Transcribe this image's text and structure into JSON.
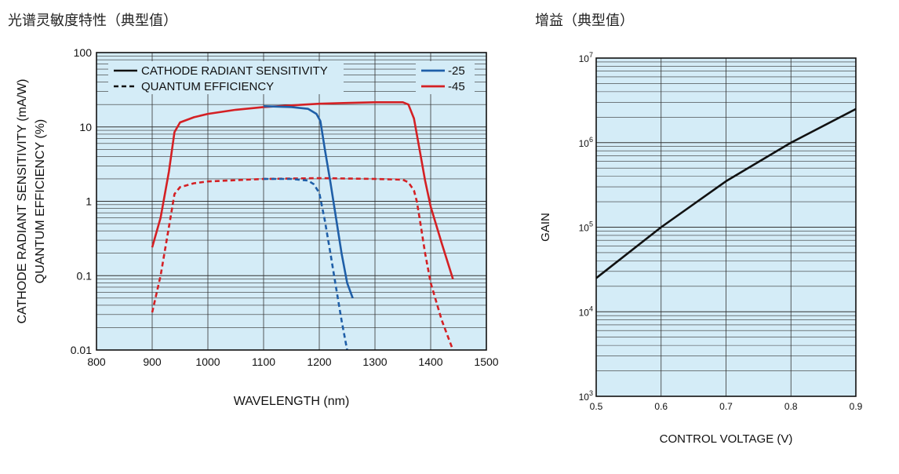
{
  "page": {
    "left_title": "光谱灵敏度特性（典型值）",
    "right_title": "增益（典型值）"
  },
  "chart_data": [
    {
      "type": "line",
      "xlabel": "WAVELENGTH (nm)",
      "ylabel": "CATHODE RADIANT SENSITIVITY (mA/W)",
      "ylabel2": "QUANTUM EFFICIENCY (%)",
      "xlim": [
        800,
        1500
      ],
      "ylim": [
        0.01,
        100
      ],
      "yscale": "log",
      "x_ticks": [
        "800",
        "900",
        "1000",
        "1100",
        "1200",
        "1300",
        "1400",
        "1500"
      ],
      "y_ticks": [
        "0.01",
        "0.1",
        "1",
        "10",
        "100"
      ],
      "grid": true,
      "legend_style": {
        "position": "top-left",
        "entries": [
          {
            "label": "CATHODE RADIANT SENSITIVITY",
            "style": "solid"
          },
          {
            "label": "QUANTUM EFFICIENCY",
            "style": "dashed"
          }
        ]
      },
      "legend_color": {
        "position": "top-right",
        "entries": [
          {
            "label": "-25",
            "color": "#1f5fa8"
          },
          {
            "label": "-45",
            "color": "#d42024"
          }
        ]
      },
      "series": [
        {
          "name": "-45",
          "kind": "CATHODE RADIANT SENSITIVITY",
          "color": "#d42024",
          "style": "solid",
          "x": [
            900,
            915,
            930,
            940,
            950,
            975,
            1000,
            1050,
            1100,
            1150,
            1200,
            1250,
            1300,
            1330,
            1350,
            1360,
            1370,
            1380,
            1390,
            1400,
            1420,
            1440
          ],
          "y": [
            0.24,
            0.6,
            2.5,
            8.5,
            11.5,
            13.5,
            15,
            17,
            18.5,
            19.5,
            20.5,
            21,
            21.5,
            21.5,
            21.5,
            20,
            13,
            5,
            1.9,
            0.85,
            0.27,
            0.09
          ]
        },
        {
          "name": "-45",
          "kind": "QUANTUM EFFICIENCY",
          "color": "#d42024",
          "style": "dashed",
          "x": [
            900,
            915,
            930,
            940,
            950,
            975,
            1000,
            1100,
            1200,
            1300,
            1350,
            1360,
            1370,
            1375,
            1380,
            1390,
            1400,
            1420,
            1440
          ],
          "y": [
            0.032,
            0.1,
            0.45,
            1.25,
            1.55,
            1.75,
            1.85,
            2.0,
            2.05,
            2.0,
            1.95,
            1.8,
            1.4,
            1.0,
            0.6,
            0.2,
            0.08,
            0.025,
            0.01
          ]
        },
        {
          "name": "-25",
          "kind": "CATHODE RADIANT SENSITIVITY",
          "color": "#1f5fa8",
          "style": "solid",
          "x": [
            1100,
            1150,
            1180,
            1195,
            1202,
            1210,
            1220,
            1230,
            1240,
            1250,
            1260
          ],
          "y": [
            19,
            18.5,
            17.5,
            15,
            12,
            5,
            1.8,
            0.6,
            0.2,
            0.08,
            0.05
          ]
        },
        {
          "name": "-25",
          "kind": "QUANTUM EFFICIENCY",
          "color": "#1f5fa8",
          "style": "dashed",
          "x": [
            1100,
            1150,
            1180,
            1190,
            1200,
            1210,
            1220,
            1230,
            1240,
            1250
          ],
          "y": [
            2.0,
            2.0,
            1.9,
            1.7,
            1.3,
            0.55,
            0.2,
            0.07,
            0.025,
            0.01
          ]
        }
      ]
    },
    {
      "type": "line",
      "xlabel": "CONTROL VOLTAGE (V)",
      "ylabel": "GAIN",
      "xlim": [
        0.5,
        0.9
      ],
      "ylim": [
        1000,
        10000000
      ],
      "yscale": "log",
      "x_ticks": [
        "0.5",
        "0.6",
        "0.7",
        "0.8",
        "0.9"
      ],
      "y_ticks": [
        {
          "base": "10",
          "exp": "3"
        },
        {
          "base": "10",
          "exp": "4"
        },
        {
          "base": "10",
          "exp": "5"
        },
        {
          "base": "10",
          "exp": "6"
        },
        {
          "base": "10",
          "exp": "7"
        }
      ],
      "grid": true,
      "series": [
        {
          "color": "#111111",
          "style": "solid",
          "x": [
            0.5,
            0.6,
            0.7,
            0.8,
            0.9
          ],
          "y": [
            25000,
            100000,
            350000,
            1000000,
            2500000
          ]
        }
      ]
    }
  ],
  "colors": {
    "plot_bg": "#d4ecf7",
    "grid": "#333333",
    "frame": "#111111"
  }
}
